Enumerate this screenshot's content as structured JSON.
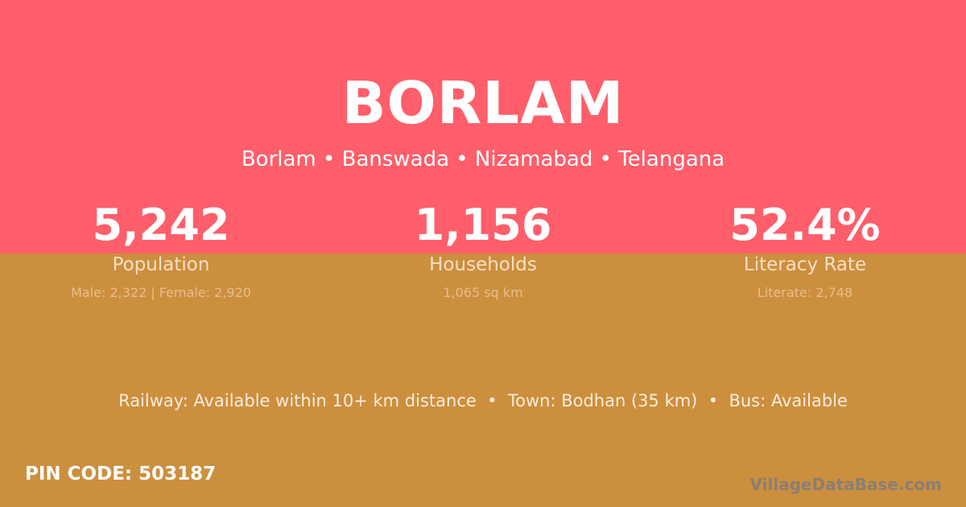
{
  "title": "BORLAM",
  "subtitle": "Borlam • Banswada • Nizamabad • Telangana",
  "stats": [
    {
      "value": "5,242",
      "label": "Population",
      "detail": "Male: 2,322 | Female: 2,920"
    },
    {
      "value": "1,156",
      "label": "Households",
      "detail": "1,065 sq km"
    },
    {
      "value": "52.4%",
      "label": "Literacy Rate",
      "detail": "Literate: 2,748"
    }
  ],
  "transport": "Railway: Available within 10+ km distance  •  Town: Bodhan (35 km)  •  Bus: Available",
  "pin": "PIN CODE: 503187",
  "brand": "VillageDataBase.com",
  "colors": {
    "top": "#ff5e6a",
    "bottom": "#cc8f3e"
  }
}
